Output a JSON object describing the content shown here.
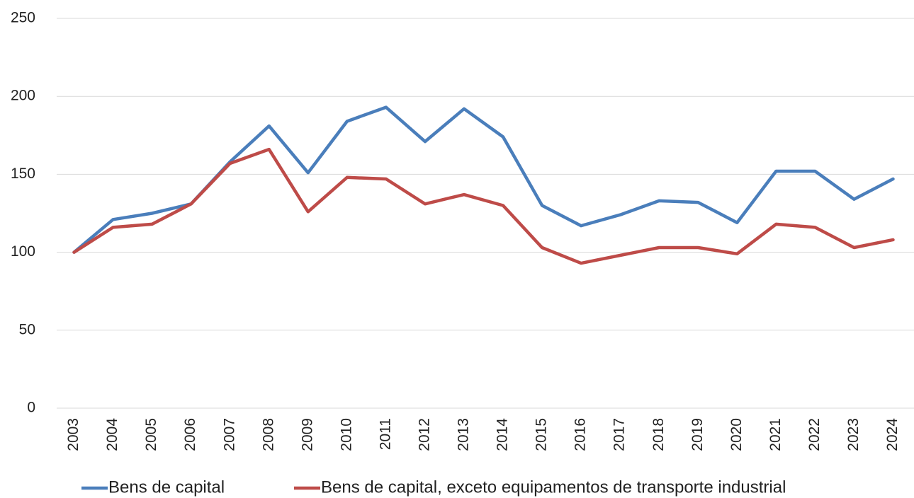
{
  "chart_data": {
    "type": "line",
    "categories": [
      "2003",
      "2004",
      "2005",
      "2006",
      "2007",
      "2008",
      "2009",
      "2010",
      "2011",
      "2012",
      "2013",
      "2014",
      "2015",
      "2016",
      "2017",
      "2018",
      "2019",
      "2020",
      "2021",
      "2022",
      "2023",
      "2024"
    ],
    "series": [
      {
        "name": "Bens de capital",
        "color": "#4a7ebb",
        "values": [
          100,
          121,
          125,
          131,
          158,
          181,
          151,
          184,
          193,
          171,
          192,
          174,
          130,
          117,
          124,
          133,
          132,
          119,
          152,
          152,
          134,
          147
        ]
      },
      {
        "name": "Bens de capital, exceto equipamentos de transporte industrial",
        "color": "#be4b48",
        "values": [
          100,
          116,
          118,
          131,
          157,
          166,
          126,
          148,
          147,
          131,
          137,
          130,
          103,
          93,
          98,
          103,
          103,
          99,
          118,
          116,
          103,
          108
        ]
      }
    ],
    "ylim": [
      0,
      250
    ],
    "yticks": [
      0,
      50,
      100,
      150,
      200,
      250
    ],
    "grid": true,
    "legend": "bottom"
  }
}
